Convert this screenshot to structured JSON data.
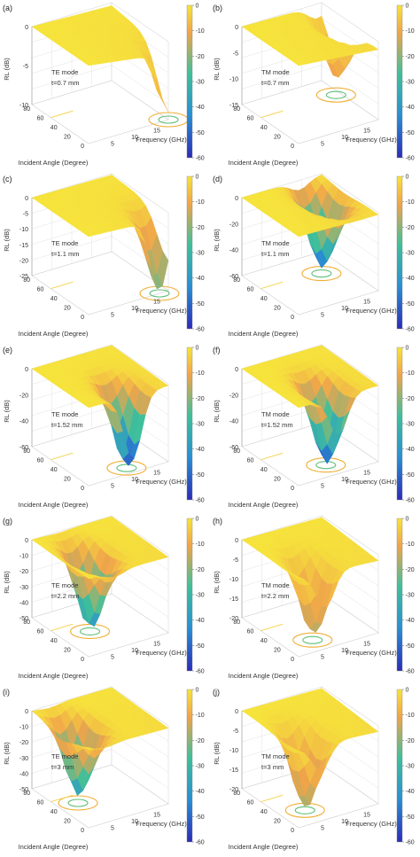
{
  "chart_data": [
    {
      "type": "surface3d",
      "panel_label": "(a)",
      "mode": "TE mode",
      "thickness": "t=0.7 mm",
      "xlabel": "Frequency (GHz)",
      "ylabel": "Incident Angle (Degree)",
      "zlabel": "RL (dB)",
      "x_ticks": [
        "5",
        "10",
        "15"
      ],
      "y_ticks": [
        "0",
        "20",
        "40",
        "60",
        "80"
      ],
      "z_ticks": [
        "0",
        "-5",
        "-10"
      ],
      "zlim": [
        -10,
        0
      ],
      "colorbar_ticks": [
        "0",
        "-10",
        "-20",
        "-30",
        "-40",
        "-50",
        "-60"
      ],
      "colorbar_range": [
        -60,
        0
      ],
      "min_rl": -7.5,
      "min_frequency": 18,
      "min_angle": 0
    },
    {
      "type": "surface3d",
      "panel_label": "(b)",
      "mode": "TM mode",
      "thickness": "t=0.7 mm",
      "xlabel": "Frequency (GHz)",
      "ylabel": "Incident Angle (Degree)",
      "zlabel": "RL (dB)",
      "x_ticks": [
        "5",
        "10",
        "15"
      ],
      "y_ticks": [
        "0",
        "20",
        "40",
        "60",
        "80"
      ],
      "z_ticks": [
        "0",
        "-5",
        "-10",
        "-15"
      ],
      "zlim": [
        -15,
        0
      ],
      "colorbar_ticks": [
        "0",
        "-10",
        "-20",
        "-30",
        "-40",
        "-50",
        "-60"
      ],
      "colorbar_range": [
        -60,
        0
      ],
      "min_rl": -11,
      "min_frequency": 17,
      "min_angle": 60
    },
    {
      "type": "surface3d",
      "panel_label": "(c)",
      "mode": "TE mode",
      "thickness": "t=1.1 mm",
      "xlabel": "Frequency (GHz)",
      "ylabel": "Incident Angle (Degree)",
      "zlabel": "RL (dB)",
      "x_ticks": [
        "5",
        "10",
        "15"
      ],
      "y_ticks": [
        "0",
        "20",
        "40",
        "60",
        "80"
      ],
      "z_ticks": [
        "0",
        "-5",
        "-10",
        "-15",
        "-20",
        "-25"
      ],
      "zlim": [
        -25,
        0
      ],
      "colorbar_ticks": [
        "0",
        "-10",
        "-20",
        "-30",
        "-40",
        "-50",
        "-60"
      ],
      "colorbar_range": [
        -60,
        0
      ],
      "min_rl": -23,
      "min_frequency": 16,
      "min_angle": 0
    },
    {
      "type": "surface3d",
      "panel_label": "(d)",
      "mode": "TM mode",
      "thickness": "t=1.1 mm",
      "xlabel": "Frequency (GHz)",
      "ylabel": "Incident Angle (Degree)",
      "zlabel": "RL (dB)",
      "x_ticks": [
        "5",
        "10",
        "15"
      ],
      "y_ticks": [
        "0",
        "20",
        "40",
        "60",
        "80"
      ],
      "z_ticks": [
        "0",
        "-20",
        "-40",
        "-60"
      ],
      "zlim": [
        -60,
        0
      ],
      "colorbar_ticks": [
        "0",
        "-10",
        "-20",
        "-30",
        "-40",
        "-50",
        "-60"
      ],
      "colorbar_range": [
        -60,
        0
      ],
      "min_rl": -55,
      "min_frequency": 13,
      "min_angle": 55
    },
    {
      "type": "surface3d",
      "panel_label": "(e)",
      "mode": "TE mode",
      "thickness": "t=1.52 mm",
      "xlabel": "Frequency (GHz)",
      "ylabel": "Incident Angle (Degree)",
      "zlabel": "RL (dB)",
      "x_ticks": [
        "5",
        "10",
        "15"
      ],
      "y_ticks": [
        "0",
        "20",
        "40",
        "60",
        "80"
      ],
      "z_ticks": [
        "0",
        "-20",
        "-40",
        "-60"
      ],
      "zlim": [
        -60,
        0
      ],
      "colorbar_ticks": [
        "0",
        "-10",
        "-20",
        "-30",
        "-40",
        "-50",
        "-60"
      ],
      "colorbar_range": [
        -60,
        0
      ],
      "min_rl": -58,
      "min_frequency": 10,
      "min_angle": 10
    },
    {
      "type": "surface3d",
      "panel_label": "(f)",
      "mode": "TM mode",
      "thickness": "t=1.52 mm",
      "xlabel": "Frequency (GHz)",
      "ylabel": "Incident Angle (Degree)",
      "zlabel": "RL (dB)",
      "x_ticks": [
        "5",
        "10",
        "15"
      ],
      "y_ticks": [
        "0",
        "20",
        "40",
        "60",
        "80"
      ],
      "z_ticks": [
        "0",
        "-20",
        "-40",
        "-60"
      ],
      "zlim": [
        -60,
        0
      ],
      "colorbar_ticks": [
        "0",
        "-10",
        "-20",
        "-30",
        "-40",
        "-50",
        "-60"
      ],
      "colorbar_range": [
        -60,
        0
      ],
      "min_rl": -58,
      "min_frequency": 9,
      "min_angle": 20
    },
    {
      "type": "surface3d",
      "panel_label": "(g)",
      "mode": "TE mode",
      "thickness": "t=2.2 mm",
      "xlabel": "Frequency (GHz)",
      "ylabel": "Incident Angle (Degree)",
      "zlabel": "RL (dB)",
      "x_ticks": [
        "5",
        "10",
        "15"
      ],
      "y_ticks": [
        "0",
        "20",
        "40",
        "60",
        "80"
      ],
      "z_ticks": [
        "0",
        "-10",
        "-20",
        "-30",
        "-40",
        "-50"
      ],
      "zlim": [
        -50,
        0
      ],
      "colorbar_ticks": [
        "0",
        "-10",
        "-20",
        "-30",
        "-40",
        "-50",
        "-60"
      ],
      "colorbar_range": [
        -60,
        0
      ],
      "min_rl": -48,
      "min_frequency": 6,
      "min_angle": 40
    },
    {
      "type": "surface3d",
      "panel_label": "(h)",
      "mode": "TM mode",
      "thickness": "t=2.2 mm",
      "xlabel": "Frequency (GHz)",
      "ylabel": "Incident Angle (Degree)",
      "zlabel": "RL (dB)",
      "x_ticks": [
        "5",
        "10",
        "15"
      ],
      "y_ticks": [
        "0",
        "20",
        "40",
        "60",
        "80"
      ],
      "z_ticks": [
        "0",
        "-5",
        "-10",
        "-15",
        "-20"
      ],
      "zlim": [
        -20,
        0
      ],
      "colorbar_ticks": [
        "0",
        "-10",
        "-20",
        "-30",
        "-40",
        "-50",
        "-60"
      ],
      "colorbar_range": [
        -60,
        0
      ],
      "min_rl": -18,
      "min_frequency": 6,
      "min_angle": 20
    },
    {
      "type": "surface3d",
      "panel_label": "(i)",
      "mode": "TE mode",
      "thickness": "t=3 mm",
      "xlabel": "Frequency (GHz)",
      "ylabel": "Incident Angle (Degree)",
      "zlabel": "RL (dB)",
      "x_ticks": [
        "5",
        "10",
        "15"
      ],
      "y_ticks": [
        "0",
        "20",
        "40",
        "60",
        "80"
      ],
      "z_ticks": [
        "0",
        "-10",
        "-20",
        "-30",
        "-40",
        "-50"
      ],
      "zlim": [
        -50,
        0
      ],
      "colorbar_ticks": [
        "0",
        "-10",
        "-20",
        "-30",
        "-40",
        "-50",
        "-60"
      ],
      "colorbar_range": [
        -60,
        0
      ],
      "min_rl": -45,
      "min_frequency": 4,
      "min_angle": 45
    },
    {
      "type": "surface3d",
      "panel_label": "(j)",
      "mode": "TM mode",
      "thickness": "t=3 mm",
      "xlabel": "Frequency (GHz)",
      "ylabel": "Incident Angle (Degree)",
      "zlabel": "RL (dB)",
      "x_ticks": [
        "5",
        "10",
        "15"
      ],
      "y_ticks": [
        "0",
        "20",
        "40",
        "60",
        "80"
      ],
      "z_ticks": [
        "0",
        "-5",
        "-10",
        "-15",
        "-20"
      ],
      "zlim": [
        -20,
        0
      ],
      "colorbar_ticks": [
        "0",
        "-10",
        "-20",
        "-30",
        "-40",
        "-50",
        "-60"
      ],
      "colorbar_range": [
        -60,
        0
      ],
      "min_rl": -19,
      "min_frequency": 5,
      "min_angle": 25
    }
  ],
  "colors": {
    "high": "#f6e33a",
    "mid_high": "#f0a44a",
    "mid": "#3fbf9a",
    "low": "#2a8fd2",
    "lowest": "#2b2cb8",
    "contour_outer": "#f0ae35",
    "contour_inner": "#5fbf7a",
    "floor_line": "#f3d34a"
  }
}
